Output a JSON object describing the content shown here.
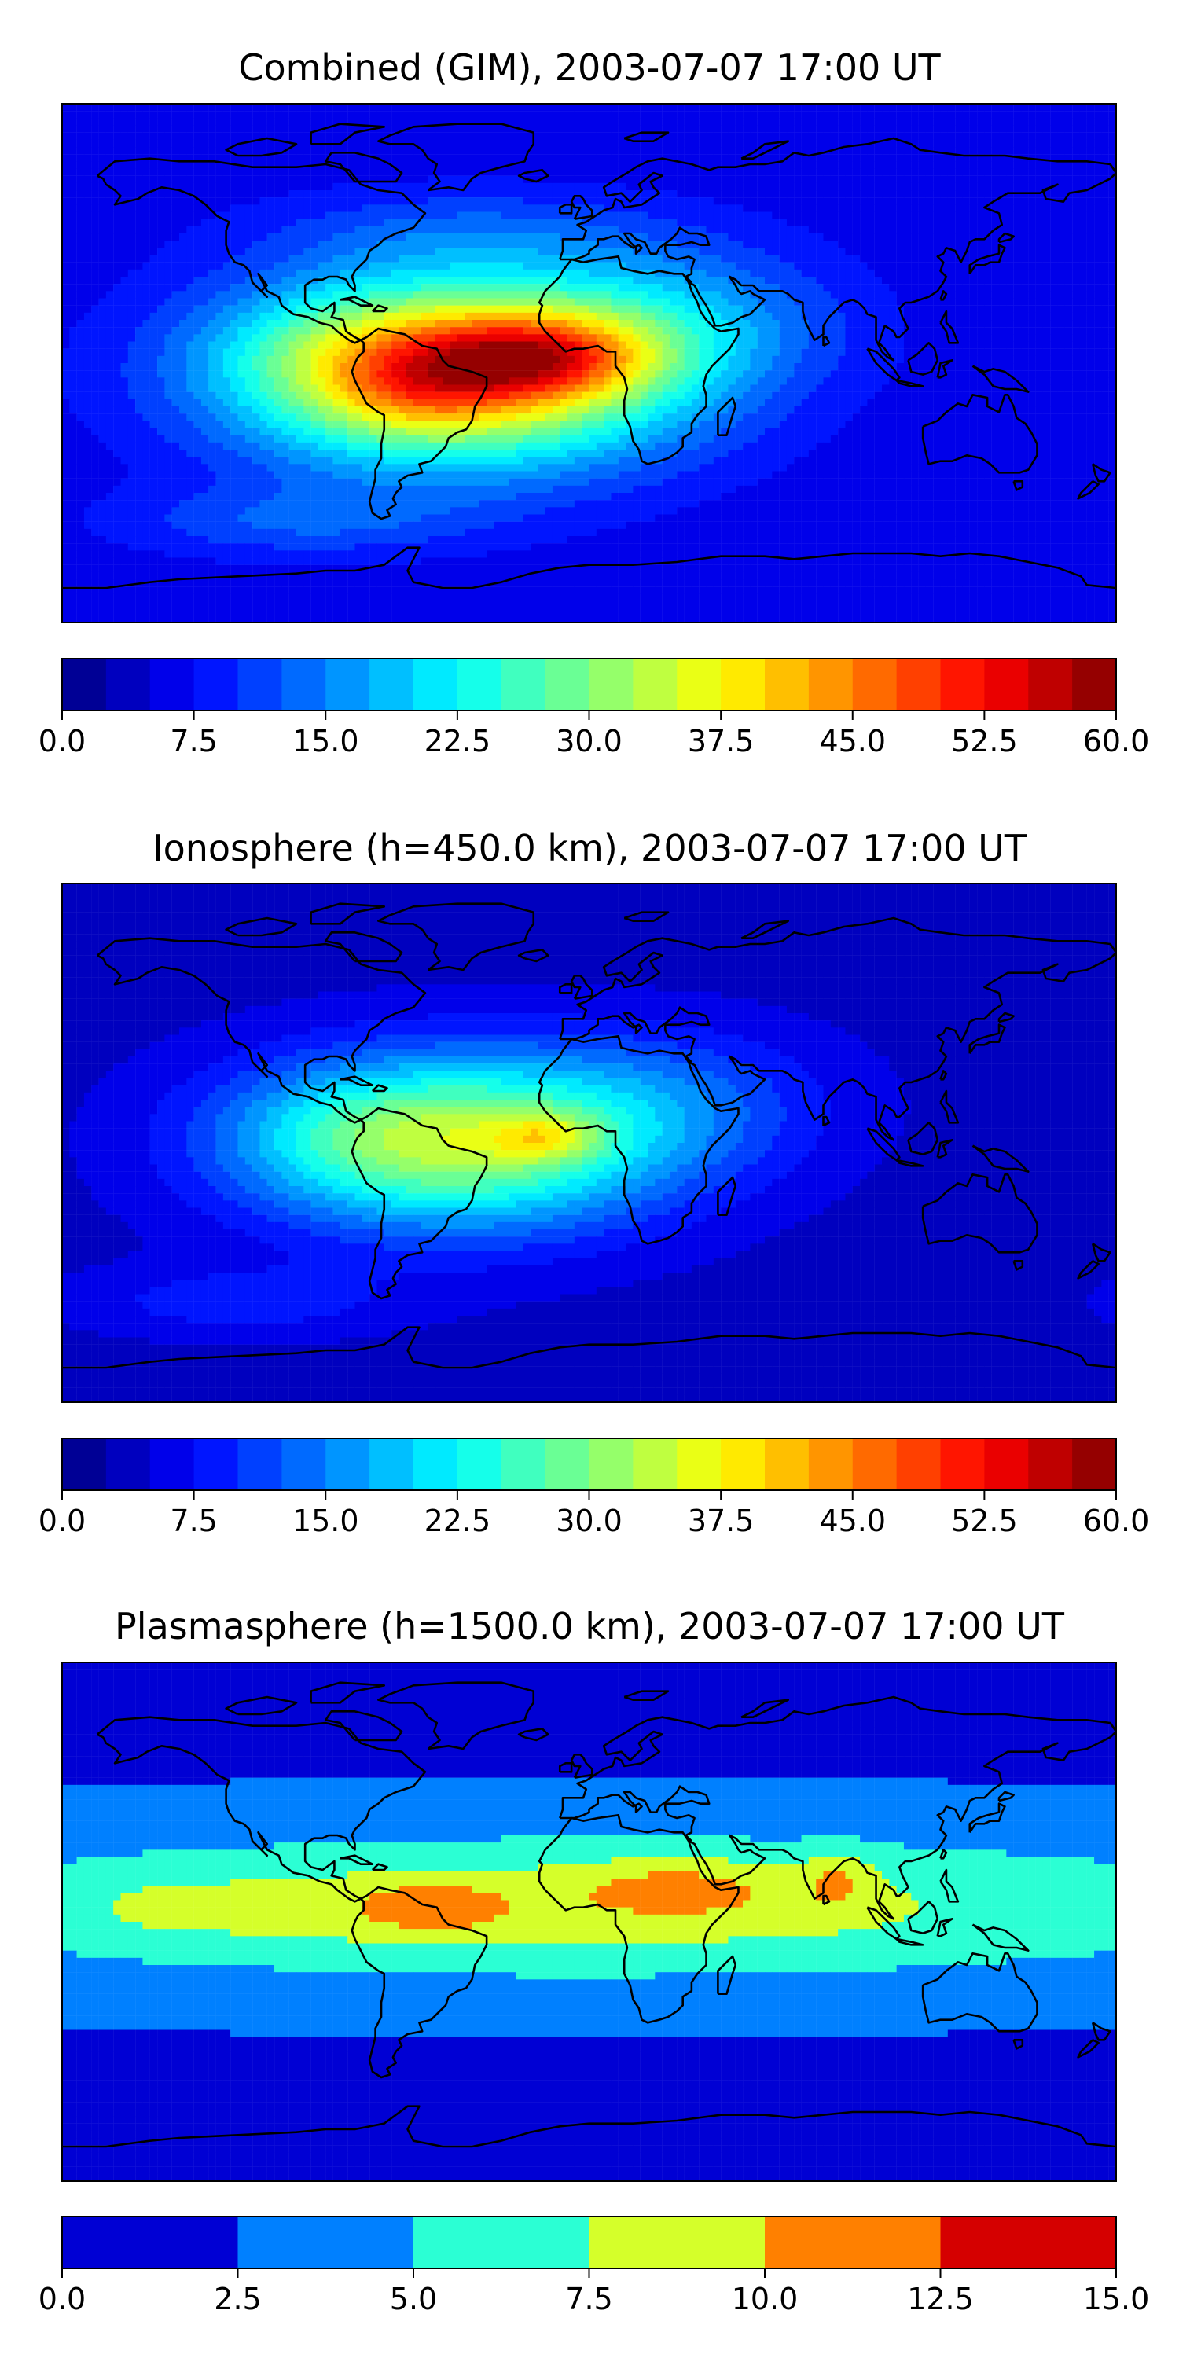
{
  "panels": [
    {
      "title": "Combined (GIM), 2003-07-07 17:00 UT",
      "colorbar": {
        "min": 0,
        "max": 60,
        "levels": 24,
        "tick_labels": [
          "0.0",
          "7.5",
          "15.0",
          "22.5",
          "30.0",
          "37.5",
          "45.0",
          "52.5",
          "60.0"
        ]
      },
      "field": {
        "baseline": 6,
        "blobs": [
          {
            "lon": -45,
            "lat": -3,
            "rlon": 75,
            "rlat": 32,
            "amp": 38
          },
          {
            "lon": -18,
            "lat": 2,
            "rlon": 38,
            "rlat": 14,
            "amp": 18
          },
          {
            "lon": -60,
            "lat": -10,
            "rlon": 30,
            "rlat": 14,
            "amp": 6
          },
          {
            "lon": 30,
            "lat": 15,
            "rlon": 55,
            "rlat": 25,
            "amp": 8
          },
          {
            "lon": -80,
            "lat": 5,
            "rlon": 45,
            "rlat": 20,
            "amp": 5
          },
          {
            "lon": -100,
            "lat": -55,
            "rlon": 60,
            "rlat": 12,
            "amp": 6
          },
          {
            "lon": -40,
            "lat": 45,
            "rlon": 70,
            "rlat": 15,
            "amp": 5
          }
        ]
      }
    },
    {
      "title": "Ionosphere  (h=450.0 km), 2003-07-07 17:00 UT",
      "colorbar": {
        "min": 0,
        "max": 60,
        "levels": 24,
        "tick_labels": [
          "0.0",
          "7.5",
          "15.0",
          "22.5",
          "30.0",
          "37.5",
          "45.0",
          "52.5",
          "60.0"
        ]
      },
      "field": {
        "baseline": 4,
        "blobs": [
          {
            "lon": -45,
            "lat": 0,
            "rlon": 72,
            "rlat": 30,
            "amp": 28
          },
          {
            "lon": -15,
            "lat": 2,
            "rlon": 18,
            "rlat": 8,
            "amp": 10
          },
          {
            "lon": 30,
            "lat": 15,
            "rlon": 55,
            "rlat": 25,
            "amp": 6
          },
          {
            "lon": -80,
            "lat": 5,
            "rlon": 45,
            "rlat": 20,
            "amp": 4
          },
          {
            "lon": -120,
            "lat": -55,
            "rlon": 55,
            "rlat": 12,
            "amp": 5
          }
        ]
      }
    },
    {
      "title": "Plasmasphere (h=1500.0 km), 2003-07-07 17:00 UT",
      "colorbar": {
        "min": 0,
        "max": 15,
        "levels": 6,
        "tick_labels": [
          "0.0",
          "2.5",
          "5.0",
          "7.5",
          "10.0",
          "12.5",
          "15.0"
        ]
      },
      "field": {
        "baseline": 2.2,
        "blobs": [
          {
            "lon": 0,
            "lat": 5,
            "rlon": 250,
            "rlat": 26,
            "amp": 6.5
          },
          {
            "lon": -55,
            "lat": 5,
            "rlon": 28,
            "rlat": 10,
            "amp": 3.5
          },
          {
            "lon": 30,
            "lat": 12,
            "rlon": 35,
            "rlat": 10,
            "amp": 3.2
          },
          {
            "lon": 85,
            "lat": 15,
            "rlon": 12,
            "rlat": 10,
            "amp": 3.2
          },
          {
            "lon": -140,
            "lat": 5,
            "rlon": 40,
            "rlat": 12,
            "amp": 1.5
          }
        ]
      }
    }
  ],
  "colors": {
    "frame": "#000000",
    "coastline": "#000000"
  }
}
